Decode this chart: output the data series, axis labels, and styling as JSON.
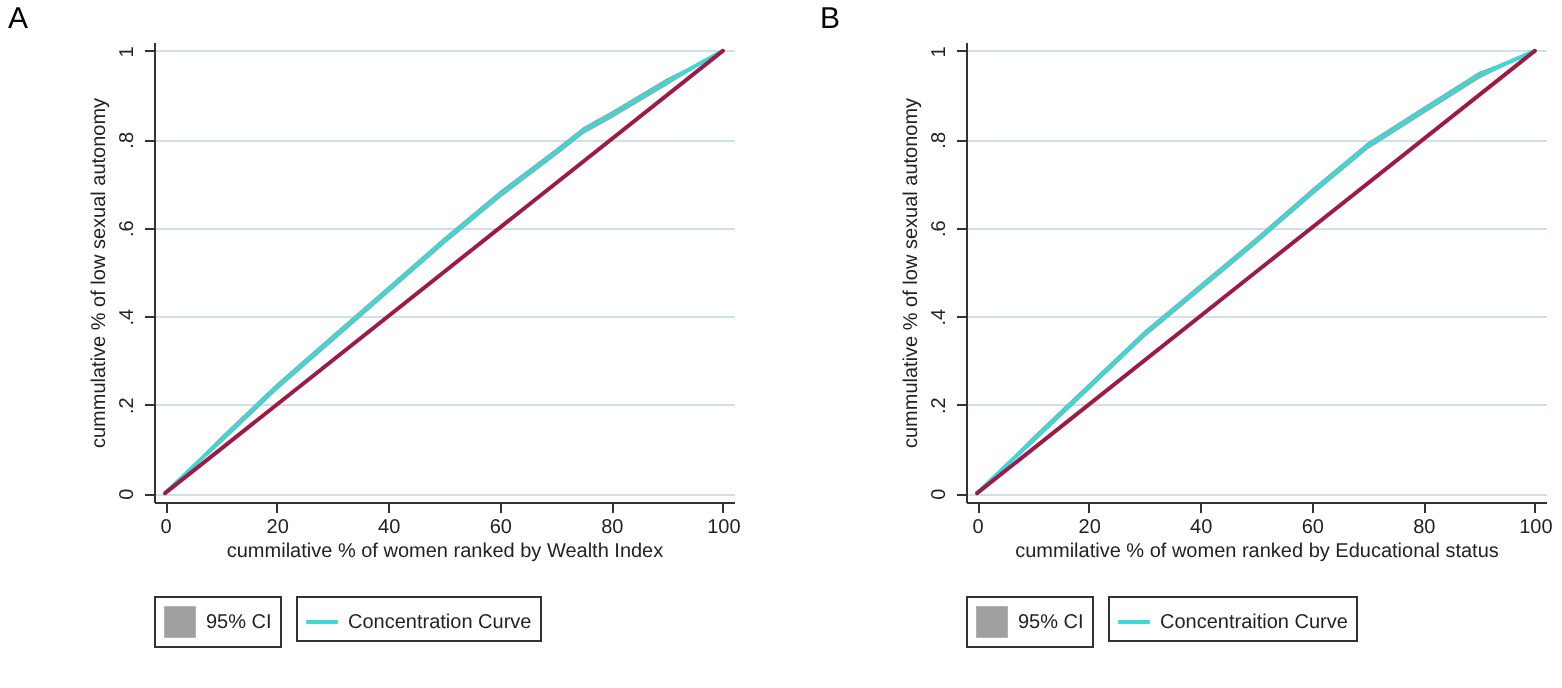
{
  "chart_data": [
    {
      "type": "line",
      "title": "A",
      "xlabel": "cummilative % of women ranked by Wealth Index",
      "ylabel": "cummulative % of low sexual autonomy",
      "xlim": [
        -2,
        102
      ],
      "ylim": [
        -0.02,
        1.02
      ],
      "xticks": [
        0,
        20,
        40,
        60,
        80,
        100
      ],
      "yticks": [
        {
          "value": 0,
          "label": "0"
        },
        {
          "value": 0.2,
          "label": ".2"
        },
        {
          "value": 0.4,
          "label": ".4"
        },
        {
          "value": 0.6,
          "label": ".6"
        },
        {
          "value": 0.8,
          "label": ".8"
        },
        {
          "value": 1,
          "label": "1"
        }
      ],
      "grid": "y",
      "legend": "bottom",
      "annotations": [
        "95% CI"
      ],
      "series": [
        {
          "name": "Concentration Curve",
          "color": "#3fd6d6",
          "x": [
            0,
            10,
            20,
            30,
            40,
            50,
            60,
            70,
            75,
            80,
            90,
            100
          ],
          "values": [
            0,
            0.12,
            0.24,
            0.35,
            0.46,
            0.57,
            0.675,
            0.77,
            0.82,
            0.855,
            0.93,
            1
          ],
          "lower": [
            0,
            0.112,
            0.232,
            0.342,
            0.452,
            0.562,
            0.667,
            0.762,
            0.812,
            0.847,
            0.922,
            1
          ],
          "upper": [
            0,
            0.128,
            0.248,
            0.358,
            0.468,
            0.578,
            0.683,
            0.778,
            0.828,
            0.863,
            0.938,
            1
          ]
        },
        {
          "color": "#9b1b45",
          "x": [
            0,
            100
          ],
          "values": [
            0,
            1
          ]
        }
      ]
    },
    {
      "type": "line",
      "title": "B",
      "xlabel": "cummilative % of women ranked by Educational status",
      "ylabel": "cummulative % of low sexual autonomy",
      "xlim": [
        -2,
        102
      ],
      "ylim": [
        -0.02,
        1.02
      ],
      "xticks": [
        0,
        20,
        40,
        60,
        80,
        100
      ],
      "yticks": [
        {
          "value": 0,
          "label": "0"
        },
        {
          "value": 0.2,
          "label": ".2"
        },
        {
          "value": 0.4,
          "label": ".4"
        },
        {
          "value": 0.6,
          "label": ".6"
        },
        {
          "value": 0.8,
          "label": ".8"
        },
        {
          "value": 1,
          "label": "1"
        }
      ],
      "grid": "y",
      "legend": "bottom",
      "annotations": [
        "95% CI"
      ],
      "series": [
        {
          "name": "Concentraition Curve",
          "color": "#3fd6d6",
          "x": [
            0,
            10,
            20,
            30,
            40,
            50,
            60,
            70,
            80,
            90,
            100
          ],
          "values": [
            0,
            0.12,
            0.24,
            0.36,
            0.465,
            0.57,
            0.68,
            0.785,
            0.865,
            0.945,
            1
          ],
          "lower": [
            0,
            0.112,
            0.232,
            0.352,
            0.457,
            0.562,
            0.672,
            0.777,
            0.857,
            0.937,
            1
          ],
          "upper": [
            0,
            0.128,
            0.248,
            0.368,
            0.473,
            0.578,
            0.688,
            0.793,
            0.873,
            0.953,
            1
          ]
        },
        {
          "color": "#9b1b45",
          "x": [
            0,
            100
          ],
          "values": [
            0,
            1
          ]
        }
      ]
    }
  ]
}
